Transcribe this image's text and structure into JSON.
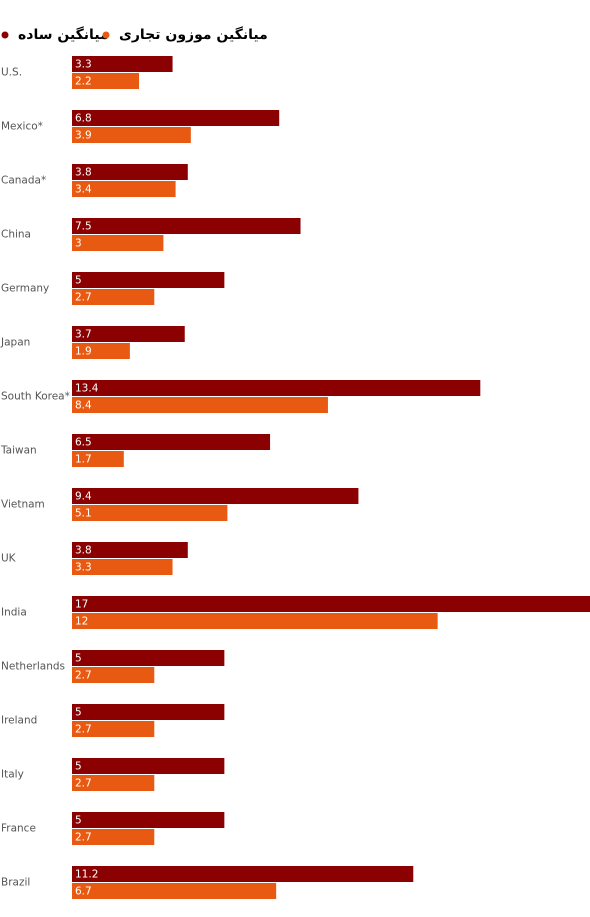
{
  "chart_data": {
    "type": "bar",
    "orientation": "horizontal",
    "categories": [
      "U.S.",
      "Mexico*",
      "Canada*",
      "China",
      "Germany",
      "Japan",
      "South Korea*",
      "Taiwan",
      "Vietnam",
      "UK",
      "India",
      "Netherlands",
      "Ireland",
      "Italy",
      "France",
      "Brazil"
    ],
    "series": [
      {
        "name": "میانگین ساده",
        "color": "#8b0000",
        "values": [
          3.3,
          6.8,
          3.8,
          7.5,
          5,
          3.7,
          13.4,
          6.5,
          9.4,
          3.8,
          17,
          5,
          5,
          5,
          5,
          11.2
        ]
      },
      {
        "name": "میانگین موزون تجاری",
        "color": "#e85a12",
        "values": [
          2.2,
          3.9,
          3.4,
          3,
          2.7,
          1.9,
          8.4,
          1.7,
          5.1,
          3.3,
          12,
          2.7,
          2.7,
          2.7,
          2.7,
          6.7
        ]
      }
    ],
    "xlim": [
      0,
      17
    ]
  }
}
